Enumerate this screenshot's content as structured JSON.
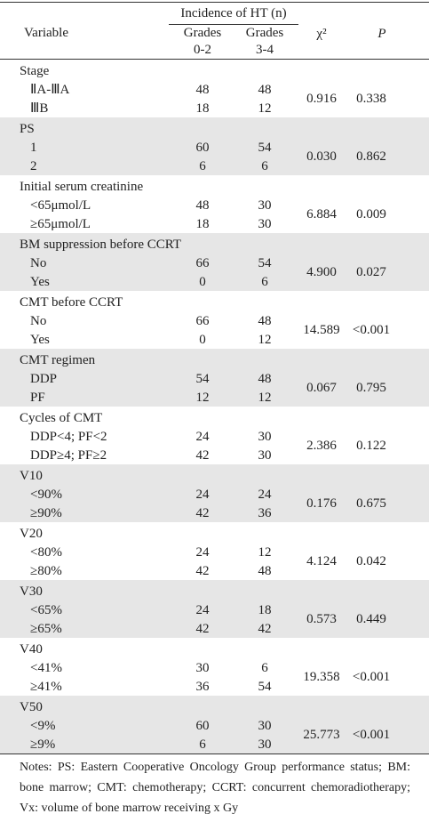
{
  "table": {
    "header": {
      "incidence": "Incidence of HT (n)",
      "variable": "Variable",
      "g02": [
        "Grades",
        "0-2"
      ],
      "g34": [
        "Grades",
        "3-4"
      ],
      "chi2": "χ²",
      "p": "P"
    },
    "groups": [
      {
        "label": "Stage",
        "rows": [
          {
            "label": "ⅡA-ⅢA",
            "g02": "48",
            "g34": "48"
          },
          {
            "label": "ⅢB",
            "g02": "18",
            "g34": "12"
          }
        ],
        "chi2": "0.916",
        "p": "0.338"
      },
      {
        "label": "PS",
        "rows": [
          {
            "label": "1",
            "g02": "60",
            "g34": "54"
          },
          {
            "label": "2",
            "g02": "6",
            "g34": "6"
          }
        ],
        "chi2": "0.030",
        "p": "0.862"
      },
      {
        "label": "Initial serum creatinine",
        "rows": [
          {
            "label": "<65μmol/L",
            "g02": "48",
            "g34": "30"
          },
          {
            "label": "≥65μmol/L",
            "g02": "18",
            "g34": "30"
          }
        ],
        "chi2": "6.884",
        "p": "0.009"
      },
      {
        "label": "BM suppression before CCRT",
        "rows": [
          {
            "label": "No",
            "g02": "66",
            "g34": "54"
          },
          {
            "label": "Yes",
            "g02": "0",
            "g34": "6"
          }
        ],
        "chi2": "4.900",
        "p": "0.027"
      },
      {
        "label": "CMT before CCRT",
        "rows": [
          {
            "label": "No",
            "g02": "66",
            "g34": "48"
          },
          {
            "label": "Yes",
            "g02": "0",
            "g34": "12"
          }
        ],
        "chi2": "14.589",
        "p": "<0.001"
      },
      {
        "label": "CMT regimen",
        "rows": [
          {
            "label": "DDP",
            "g02": "54",
            "g34": "48"
          },
          {
            "label": "PF",
            "g02": "12",
            "g34": "12"
          }
        ],
        "chi2": "0.067",
        "p": "0.795"
      },
      {
        "label": "Cycles of CMT",
        "rows": [
          {
            "label": "DDP<4;  PF<2",
            "g02": "24",
            "g34": "30"
          },
          {
            "label": "DDP≥4;  PF≥2",
            "g02": "42",
            "g34": "30"
          }
        ],
        "chi2": "2.386",
        "p": "0.122"
      },
      {
        "label": "V10",
        "rows": [
          {
            "label": "<90%",
            "g02": "24",
            "g34": "24"
          },
          {
            "label": "≥90%",
            "g02": "42",
            "g34": "36"
          }
        ],
        "chi2": "0.176",
        "p": "0.675"
      },
      {
        "label": "V20",
        "rows": [
          {
            "label": "<80%",
            "g02": "24",
            "g34": "12"
          },
          {
            "label": "≥80%",
            "g02": "42",
            "g34": "48"
          }
        ],
        "chi2": "4.124",
        "p": "0.042"
      },
      {
        "label": "V30",
        "rows": [
          {
            "label": "<65%",
            "g02": "24",
            "g34": "18"
          },
          {
            "label": "≥65%",
            "g02": "42",
            "g34": "42"
          }
        ],
        "chi2": "0.573",
        "p": "0.449"
      },
      {
        "label": "V40",
        "rows": [
          {
            "label": "<41%",
            "g02": "30",
            "g34": "6"
          },
          {
            "label": "≥41%",
            "g02": "36",
            "g34": "54"
          }
        ],
        "chi2": "19.358",
        "p": "<0.001"
      },
      {
        "label": "V50",
        "rows": [
          {
            "label": "<9%",
            "g02": "60",
            "g34": "30"
          },
          {
            "label": "≥9%",
            "g02": "6",
            "g34": "30"
          }
        ],
        "chi2": "25.773",
        "p": "<0.001"
      }
    ],
    "notes": "Notes: PS: Eastern Cooperative Oncology Group performance status; BM: bone marrow; CMT: chemotherapy; CCRT: concurrent chemoradiotherapy; Vx: volume of bone marrow receiving x Gy"
  }
}
